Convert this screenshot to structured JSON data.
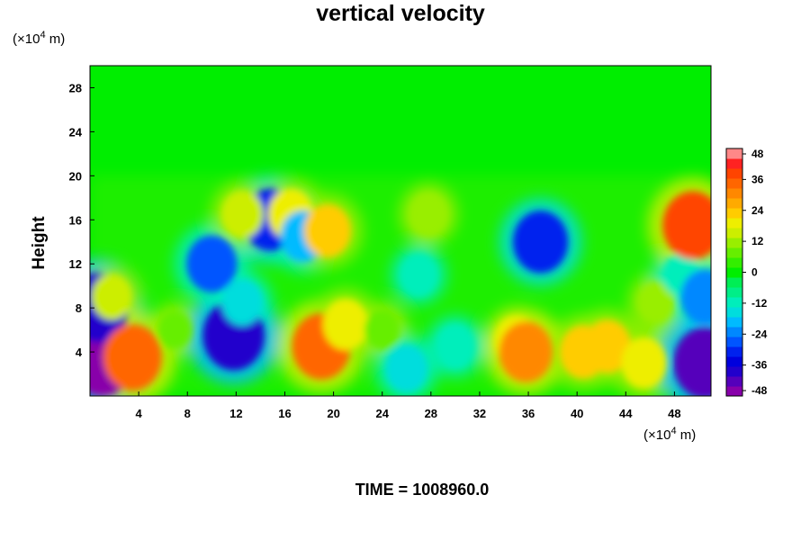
{
  "chart_data": {
    "type": "heatmap",
    "title": "vertical velocity",
    "ylabel": "Height",
    "x_unit_prefix": "(×10",
    "x_unit_exp": "4",
    "x_unit_suffix": " m)",
    "y_unit_prefix": "(×10",
    "y_unit_exp": "4",
    "y_unit_suffix": " m)",
    "xlim": [
      0,
      51
    ],
    "ylim": [
      0,
      30
    ],
    "x_ticks": [
      4,
      8,
      12,
      16,
      20,
      24,
      28,
      32,
      36,
      40,
      44,
      48
    ],
    "y_ticks": [
      4,
      8,
      12,
      16,
      20,
      24,
      28
    ],
    "colorbar": {
      "min": -48,
      "max": 48,
      "step": 4,
      "ticks": [
        48,
        36,
        24,
        12,
        0,
        -12,
        -24,
        -36,
        -48
      ],
      "colors": [
        "#8800aa",
        "#5500bb",
        "#2200cc",
        "#0000dd",
        "#0022ee",
        "#0055ff",
        "#0088ff",
        "#00bbff",
        "#00dddd",
        "#00eebb",
        "#00ee88",
        "#00ee55",
        "#00ee00",
        "#33ee00",
        "#66ee00",
        "#99ee00",
        "#ccee00",
        "#eeee00",
        "#ffcc00",
        "#ffaa00",
        "#ff8800",
        "#ff6600",
        "#ff4400",
        "#ff2222",
        "#ff8888"
      ]
    },
    "features": [
      {
        "x": 1.0,
        "y": 3.5,
        "value": -48
      },
      {
        "x": 0.6,
        "y": 8.0,
        "value": -40
      },
      {
        "x": 1.8,
        "y": 9.0,
        "value": 14
      },
      {
        "x": 3.5,
        "y": 3.5,
        "value": 36
      },
      {
        "x": 7.0,
        "y": 6.0,
        "value": 6
      },
      {
        "x": 11.8,
        "y": 5.5,
        "value": -40
      },
      {
        "x": 12.5,
        "y": 8.5,
        "value": -14
      },
      {
        "x": 10.0,
        "y": 12.0,
        "value": -26
      },
      {
        "x": 14.8,
        "y": 16.0,
        "value": -32
      },
      {
        "x": 16.5,
        "y": 16.5,
        "value": 20
      },
      {
        "x": 17.5,
        "y": 14.5,
        "value": -20
      },
      {
        "x": 19.5,
        "y": 15.0,
        "value": 22
      },
      {
        "x": 12.5,
        "y": 16.5,
        "value": 16
      },
      {
        "x": 19.0,
        "y": 4.5,
        "value": 36
      },
      {
        "x": 21.0,
        "y": 6.5,
        "value": 20
      },
      {
        "x": 24.0,
        "y": 6.0,
        "value": 8
      },
      {
        "x": 26.0,
        "y": 2.5,
        "value": -16
      },
      {
        "x": 30.0,
        "y": 4.5,
        "value": -12
      },
      {
        "x": 27.0,
        "y": 11.0,
        "value": -10
      },
      {
        "x": 27.8,
        "y": 16.5,
        "value": 12
      },
      {
        "x": 35.0,
        "y": 5.0,
        "value": 18
      },
      {
        "x": 35.8,
        "y": 4.0,
        "value": 30
      },
      {
        "x": 37.0,
        "y": 14.0,
        "value": -32
      },
      {
        "x": 40.5,
        "y": 4.0,
        "value": 22
      },
      {
        "x": 42.5,
        "y": 4.5,
        "value": 22
      },
      {
        "x": 45.5,
        "y": 3.0,
        "value": 20
      },
      {
        "x": 46.5,
        "y": 8.5,
        "value": 10
      },
      {
        "x": 48.5,
        "y": 11.0,
        "value": -10
      },
      {
        "x": 49.5,
        "y": 15.5,
        "value": 38
      },
      {
        "x": 50.5,
        "y": 9.0,
        "value": -24
      },
      {
        "x": 50.5,
        "y": 3.0,
        "value": -42
      }
    ]
  },
  "time": {
    "label": "TIME =",
    "value": "1008960.0"
  }
}
